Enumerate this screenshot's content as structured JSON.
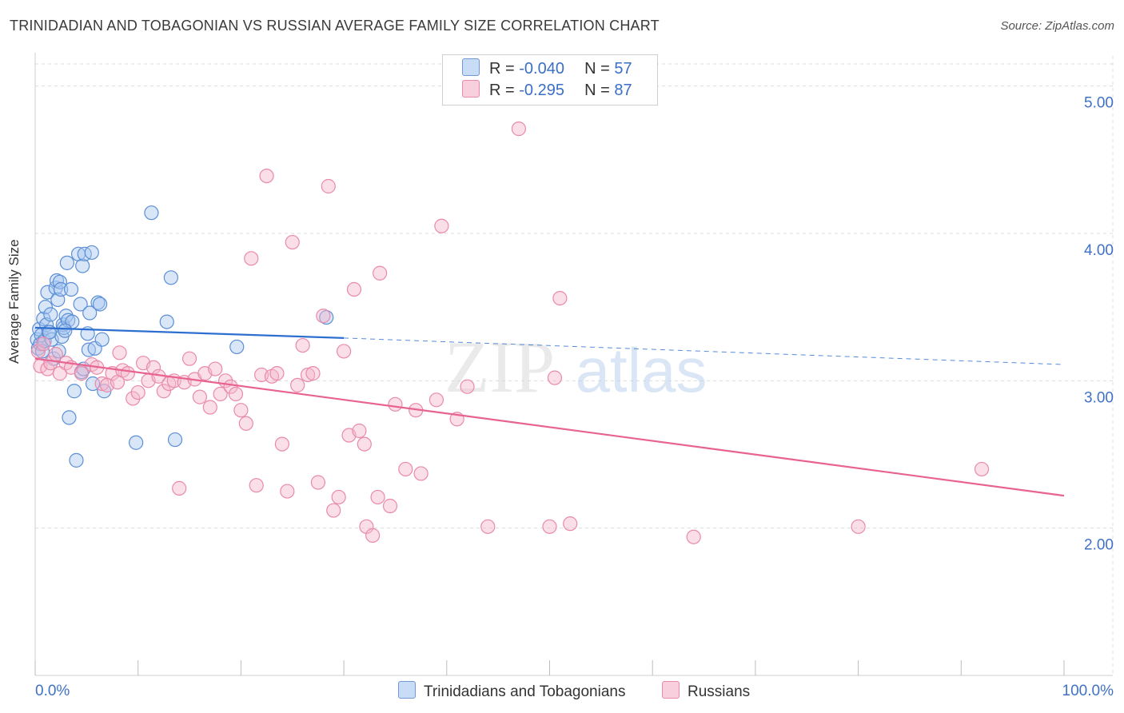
{
  "header": {
    "title": "TRINIDADIAN AND TOBAGONIAN VS RUSSIAN AVERAGE FAMILY SIZE CORRELATION CHART",
    "source": "Source: ZipAtlas.com"
  },
  "watermark": {
    "zip": "ZIP",
    "atlas": "atlas"
  },
  "stats": {
    "rows": [
      {
        "r_label": "R =",
        "r_value": "-0.040",
        "n_label": "N =",
        "n_value": "57"
      },
      {
        "r_label": "R =",
        "r_value": "-0.295",
        "n_label": "N =",
        "n_value": "87"
      }
    ]
  },
  "legend": {
    "items": [
      {
        "label": "Trinidadians and Tobagonians"
      },
      {
        "label": "Russians"
      }
    ]
  },
  "colors": {
    "blue_fill": "#a9c8f0",
    "blue_stroke": "#5b8fd6",
    "blue_line": "#2d6fd0",
    "pink_fill": "#f5b6cb",
    "pink_stroke": "#e98aaa",
    "pink_line": "#e8638f",
    "axis_text": "#3f72c6",
    "grid": "#dcdcdc"
  },
  "chart_data": {
    "type": "scatter",
    "title": "TRINIDADIAN AND TOBAGONIAN VS RUSSIAN AVERAGE FAMILY SIZE CORRELATION CHART",
    "xlabel": "",
    "ylabel": "Average Family Size",
    "xlim": [
      0,
      100
    ],
    "ylim": [
      1.0,
      5.15
    ],
    "x_tick_labels": [
      "0.0%",
      "100.0%"
    ],
    "y_ticks": [
      2.0,
      3.0,
      4.0,
      5.0
    ],
    "y_tick_labels": [
      "2.00",
      "3.00",
      "4.00",
      "5.00"
    ],
    "grid": true,
    "legend_position": "bottom",
    "series": [
      {
        "name": "Trinidadians and Tobagonians",
        "color": "blue",
        "trend": {
          "x0": 0,
          "y0": 3.36,
          "x1": 30,
          "y1": 3.29,
          "dash_to_x": 100,
          "dash_to_y": 3.11
        },
        "points": [
          [
            0.2,
            3.28
          ],
          [
            0.3,
            3.22
          ],
          [
            0.4,
            3.35
          ],
          [
            0.5,
            3.25
          ],
          [
            0.6,
            3.31
          ],
          [
            0.7,
            3.2
          ],
          [
            0.8,
            3.42
          ],
          [
            0.9,
            3.27
          ],
          [
            1.0,
            3.5
          ],
          [
            1.1,
            3.38
          ],
          [
            1.2,
            3.6
          ],
          [
            1.3,
            3.33
          ],
          [
            1.5,
            3.45
          ],
          [
            1.6,
            3.28
          ],
          [
            1.8,
            3.15
          ],
          [
            2.0,
            3.63
          ],
          [
            2.1,
            3.68
          ],
          [
            2.2,
            3.55
          ],
          [
            2.3,
            3.2
          ],
          [
            2.4,
            3.67
          ],
          [
            2.5,
            3.62
          ],
          [
            2.6,
            3.3
          ],
          [
            2.7,
            3.38
          ],
          [
            2.8,
            3.36
          ],
          [
            3.0,
            3.44
          ],
          [
            3.1,
            3.8
          ],
          [
            3.2,
            3.41
          ],
          [
            3.5,
            3.62
          ],
          [
            3.6,
            3.4
          ],
          [
            3.8,
            2.93
          ],
          [
            3.3,
            2.75
          ],
          [
            4.0,
            2.46
          ],
          [
            4.2,
            3.86
          ],
          [
            4.4,
            3.52
          ],
          [
            4.5,
            3.06
          ],
          [
            4.6,
            3.78
          ],
          [
            4.8,
            3.86
          ],
          [
            5.1,
            3.32
          ],
          [
            5.3,
            3.46
          ],
          [
            5.5,
            3.87
          ],
          [
            5.2,
            3.21
          ],
          [
            5.8,
            3.22
          ],
          [
            5.6,
            2.98
          ],
          [
            6.1,
            3.53
          ],
          [
            6.3,
            3.52
          ],
          [
            6.5,
            3.28
          ],
          [
            6.7,
            2.93
          ],
          [
            9.8,
            2.58
          ],
          [
            11.3,
            4.14
          ],
          [
            12.8,
            3.4
          ],
          [
            13.2,
            3.7
          ],
          [
            13.6,
            2.6
          ],
          [
            19.6,
            3.23
          ],
          [
            28.3,
            3.43
          ],
          [
            1.4,
            3.33
          ],
          [
            2.9,
            3.34
          ],
          [
            4.7,
            3.08
          ]
        ]
      },
      {
        "name": "Russians",
        "color": "pink",
        "trend": {
          "x0": 0,
          "y0": 3.15,
          "x1": 100,
          "y1": 2.22
        },
        "points": [
          [
            0.3,
            3.2
          ],
          [
            0.5,
            3.1
          ],
          [
            0.8,
            3.25
          ],
          [
            1.2,
            3.08
          ],
          [
            1.5,
            3.12
          ],
          [
            2.0,
            3.18
          ],
          [
            2.4,
            3.05
          ],
          [
            3.0,
            3.12
          ],
          [
            3.5,
            3.09
          ],
          [
            4.5,
            3.05
          ],
          [
            5.5,
            3.11
          ],
          [
            6.0,
            3.09
          ],
          [
            6.5,
            2.98
          ],
          [
            7.0,
            2.97
          ],
          [
            7.5,
            3.05
          ],
          [
            8.0,
            2.99
          ],
          [
            8.5,
            3.07
          ],
          [
            8.2,
            3.19
          ],
          [
            9.0,
            3.05
          ],
          [
            9.5,
            2.88
          ],
          [
            10.0,
            2.92
          ],
          [
            10.5,
            3.12
          ],
          [
            11.0,
            3.0
          ],
          [
            11.5,
            3.09
          ],
          [
            12.0,
            3.03
          ],
          [
            12.5,
            2.93
          ],
          [
            13.0,
            2.98
          ],
          [
            13.5,
            3.0
          ],
          [
            14.0,
            2.27
          ],
          [
            14.5,
            2.99
          ],
          [
            15.0,
            3.15
          ],
          [
            15.5,
            3.01
          ],
          [
            16.0,
            2.89
          ],
          [
            16.5,
            3.05
          ],
          [
            17.0,
            2.82
          ],
          [
            17.5,
            3.08
          ],
          [
            18.0,
            2.91
          ],
          [
            18.5,
            3.0
          ],
          [
            19.0,
            2.96
          ],
          [
            19.5,
            2.91
          ],
          [
            20.0,
            2.8
          ],
          [
            20.5,
            2.71
          ],
          [
            21.0,
            3.83
          ],
          [
            21.5,
            2.29
          ],
          [
            22.0,
            3.04
          ],
          [
            22.5,
            4.39
          ],
          [
            23.0,
            3.03
          ],
          [
            23.5,
            3.05
          ],
          [
            24.0,
            2.57
          ],
          [
            24.5,
            2.25
          ],
          [
            25.0,
            3.94
          ],
          [
            25.5,
            2.97
          ],
          [
            26.0,
            3.24
          ],
          [
            26.5,
            3.04
          ],
          [
            27.0,
            3.05
          ],
          [
            27.5,
            2.31
          ],
          [
            28.0,
            3.44
          ],
          [
            28.5,
            4.32
          ],
          [
            29.0,
            2.12
          ],
          [
            29.5,
            2.21
          ],
          [
            30.0,
            3.2
          ],
          [
            30.5,
            2.63
          ],
          [
            31.0,
            3.62
          ],
          [
            31.5,
            2.66
          ],
          [
            32.0,
            2.57
          ],
          [
            32.2,
            2.01
          ],
          [
            32.8,
            1.95
          ],
          [
            33.3,
            2.21
          ],
          [
            33.5,
            3.73
          ],
          [
            34.5,
            2.15
          ],
          [
            35.0,
            2.84
          ],
          [
            36.0,
            2.4
          ],
          [
            37.0,
            2.8
          ],
          [
            37.5,
            2.37
          ],
          [
            39.0,
            2.87
          ],
          [
            39.5,
            4.05
          ],
          [
            41.0,
            2.74
          ],
          [
            42.0,
            2.96
          ],
          [
            44.0,
            2.01
          ],
          [
            47.0,
            4.71
          ],
          [
            50.0,
            2.01
          ],
          [
            50.5,
            3.02
          ],
          [
            51.0,
            3.56
          ],
          [
            52.0,
            2.03
          ],
          [
            64.0,
            1.94
          ],
          [
            80.0,
            2.01
          ],
          [
            92.0,
            2.4
          ]
        ]
      }
    ]
  }
}
